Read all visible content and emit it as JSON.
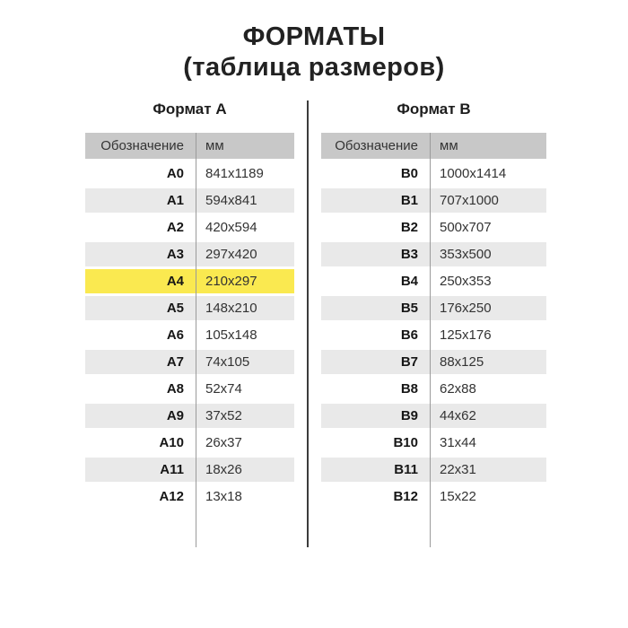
{
  "title": {
    "line1": "ФОРМАТЫ",
    "line2": "(таблица размеров)"
  },
  "colors": {
    "header_bg": "#c8c8c8",
    "alt_row_bg": "#e9e9e9",
    "highlight_bg": "#fae950"
  },
  "chart_data": [
    {
      "type": "table",
      "title": "Формат А",
      "columns": [
        "Обозначение",
        "мм"
      ],
      "highlight_row_index": 4,
      "highlighted_designation": "A4",
      "rows": [
        [
          "A0",
          "841x1189"
        ],
        [
          "A1",
          "594x841"
        ],
        [
          "A2",
          "420x594"
        ],
        [
          "A3",
          "297x420"
        ],
        [
          "A4",
          "210x297"
        ],
        [
          "A5",
          "148x210"
        ],
        [
          "A6",
          "105x148"
        ],
        [
          "A7",
          "74x105"
        ],
        [
          "A8",
          "52x74"
        ],
        [
          "A9",
          "37x52"
        ],
        [
          "A10",
          "26x37"
        ],
        [
          "A11",
          "18x26"
        ],
        [
          "A12",
          "13x18"
        ]
      ]
    },
    {
      "type": "table",
      "title": "Формат В",
      "columns": [
        "Обозначение",
        "мм"
      ],
      "highlight_row_index": null,
      "rows": [
        [
          "B0",
          "1000x1414"
        ],
        [
          "B1",
          "707x1000"
        ],
        [
          "B2",
          "500x707"
        ],
        [
          "B3",
          "353x500"
        ],
        [
          "B4",
          "250x353"
        ],
        [
          "B5",
          "176x250"
        ],
        [
          "B6",
          "125x176"
        ],
        [
          "B7",
          "88x125"
        ],
        [
          "B8",
          "62x88"
        ],
        [
          "B9",
          "44x62"
        ],
        [
          "B10",
          "31x44"
        ],
        [
          "B11",
          "22x31"
        ],
        [
          "B12",
          "15x22"
        ]
      ]
    }
  ]
}
